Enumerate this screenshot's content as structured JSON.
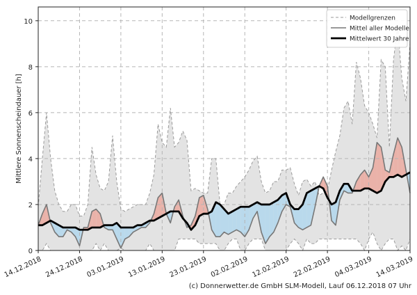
{
  "chart_data": {
    "type": "area",
    "ylabel": "Mittlere Sonnenscheindauer [h]",
    "ylim": [
      0,
      10.6
    ],
    "yticks": [
      0,
      2,
      4,
      6,
      8,
      10
    ],
    "x_count": 91,
    "xticks": [
      {
        "index": 0,
        "label": "14.12.2018"
      },
      {
        "index": 10,
        "label": "24.12.2018"
      },
      {
        "index": 20,
        "label": "03.01.2019"
      },
      {
        "index": 30,
        "label": "13.01.2019"
      },
      {
        "index": 40,
        "label": "23.01.2019"
      },
      {
        "index": 50,
        "label": "02.02.2019"
      },
      {
        "index": 60,
        "label": "12.02.2019"
      },
      {
        "index": 70,
        "label": "22.02.2019"
      },
      {
        "index": 80,
        "label": "04.03.2019"
      },
      {
        "index": 90,
        "label": "14.03.2019"
      }
    ],
    "legend": [
      {
        "label": "Modellgrenzen",
        "style": "dashed",
        "color": "#999999"
      },
      {
        "label": "Mittel aller Modelle",
        "style": "solid",
        "color": "#777777"
      },
      {
        "label": "Mittelwert 30 Jahre",
        "style": "bold",
        "color": "#000000"
      }
    ],
    "grid": true,
    "series": [
      {
        "name": "Modellgrenzen oben",
        "values": [
          1.9,
          4.0,
          6.0,
          4.0,
          2.6,
          2.0,
          1.7,
          1.7,
          2.0,
          2.0,
          1.5,
          1.5,
          2.0,
          4.5,
          3.3,
          2.7,
          2.6,
          3.0,
          5.0,
          3.0,
          1.8,
          1.7,
          1.8,
          1.9,
          2.0,
          2.0,
          2.0,
          2.5,
          3.3,
          5.5,
          4.7,
          4.5,
          6.2,
          4.5,
          4.7,
          5.2,
          4.8,
          2.6,
          2.7,
          2.6,
          2.5,
          2.5,
          4.0,
          4.0,
          2.0,
          2.0,
          2.5,
          2.5,
          2.8,
          3.0,
          3.2,
          3.5,
          3.9,
          4.1,
          3.0,
          2.5,
          2.6,
          3.0,
          3.0,
          3.5,
          3.5,
          3.6,
          2.9,
          2.4,
          3.0,
          3.1,
          2.8,
          3.0,
          2.4,
          2.5,
          2.6,
          3.5,
          4.3,
          5.0,
          6.2,
          6.5,
          5.5,
          8.2,
          7.5,
          6.3,
          6.0,
          5.5,
          4.9,
          8.3,
          8.0,
          4.5,
          8.3,
          9.8,
          7.5,
          6.5,
          9.0
        ]
      },
      {
        "name": "Modellgrenzen unten",
        "values": [
          0.0,
          0.0,
          0.3,
          0.0,
          0.0,
          0.0,
          0.0,
          0.0,
          0.0,
          0.0,
          0.0,
          0.0,
          0.0,
          0.0,
          0.3,
          0.0,
          0.3,
          0.0,
          0.0,
          0.0,
          0.1,
          0.0,
          0.0,
          0.0,
          0.0,
          0.0,
          0.0,
          0.3,
          0.0,
          0.0,
          0.0,
          0.0,
          0.0,
          0.0,
          0.5,
          0.5,
          0.5,
          0.5,
          0.5,
          0.3,
          0.3,
          0.3,
          0.3,
          0.3,
          0.0,
          0.0,
          0.3,
          0.5,
          0.5,
          0.0,
          0.0,
          0.3,
          0.5,
          0.5,
          0.5,
          0.0,
          0.0,
          0.0,
          0.0,
          0.0,
          0.0,
          0.3,
          0.5,
          0.3,
          0.0,
          0.5,
          0.3,
          0.3,
          0.5,
          0.5,
          0.5,
          0.5,
          0.5,
          0.5,
          0.5,
          0.5,
          0.5,
          0.5,
          0.3,
          0.0,
          0.5,
          0.8,
          0.3,
          0.0,
          0.3,
          0.5,
          0.5,
          0.0,
          0.2,
          0.0,
          0.5
        ]
      },
      {
        "name": "Mittel aller Modelle",
        "values": [
          1.1,
          1.6,
          2.0,
          1.2,
          0.8,
          0.6,
          0.6,
          0.9,
          0.8,
          0.6,
          0.2,
          1.0,
          1.0,
          1.7,
          1.8,
          1.6,
          1.0,
          0.9,
          0.9,
          0.5,
          0.1,
          0.5,
          0.6,
          0.8,
          0.9,
          1.0,
          1.0,
          1.2,
          1.6,
          2.3,
          2.5,
          1.6,
          1.2,
          1.9,
          2.2,
          1.5,
          1.0,
          1.1,
          1.5,
          2.3,
          2.4,
          1.8,
          0.9,
          0.6,
          0.6,
          0.8,
          0.7,
          0.8,
          0.9,
          0.8,
          0.6,
          0.9,
          1.4,
          1.7,
          0.8,
          0.3,
          0.6,
          0.8,
          1.2,
          1.7,
          2.0,
          1.9,
          1.2,
          1.0,
          0.9,
          1.0,
          1.1,
          1.9,
          2.8,
          3.2,
          2.8,
          1.3,
          1.1,
          2.2,
          2.6,
          2.5,
          2.5,
          3.0,
          3.3,
          3.5,
          3.2,
          3.6,
          4.7,
          4.5,
          3.5,
          3.4,
          4.2,
          4.9,
          4.5,
          3.5,
          2.5
        ]
      },
      {
        "name": "Mittelwert 30 Jahre",
        "values": [
          1.1,
          1.1,
          1.2,
          1.3,
          1.2,
          1.1,
          1.0,
          1.0,
          1.0,
          1.0,
          0.9,
          0.9,
          0.9,
          1.0,
          1.0,
          1.0,
          1.1,
          1.1,
          1.1,
          1.2,
          1.0,
          1.0,
          1.0,
          1.0,
          1.1,
          1.1,
          1.2,
          1.3,
          1.3,
          1.4,
          1.5,
          1.6,
          1.7,
          1.7,
          1.7,
          1.4,
          1.2,
          0.9,
          1.1,
          1.5,
          1.6,
          1.6,
          1.7,
          2.1,
          2.0,
          1.8,
          1.6,
          1.7,
          1.8,
          1.9,
          1.9,
          1.9,
          2.0,
          2.1,
          2.0,
          2.0,
          2.0,
          2.1,
          2.2,
          2.4,
          2.5,
          2.0,
          1.8,
          1.8,
          2.0,
          2.5,
          2.6,
          2.7,
          2.8,
          2.7,
          2.3,
          2.0,
          2.1,
          2.6,
          2.9,
          2.9,
          2.6,
          2.6,
          2.6,
          2.7,
          2.7,
          2.6,
          2.5,
          2.6,
          3.0,
          3.2,
          3.2,
          3.3,
          3.2,
          3.3,
          3.4
        ]
      }
    ]
  },
  "credit": "(c) Donnerwetter.de GmbH SLM-Modell, Lauf 06.12.2018 07 Uhr"
}
